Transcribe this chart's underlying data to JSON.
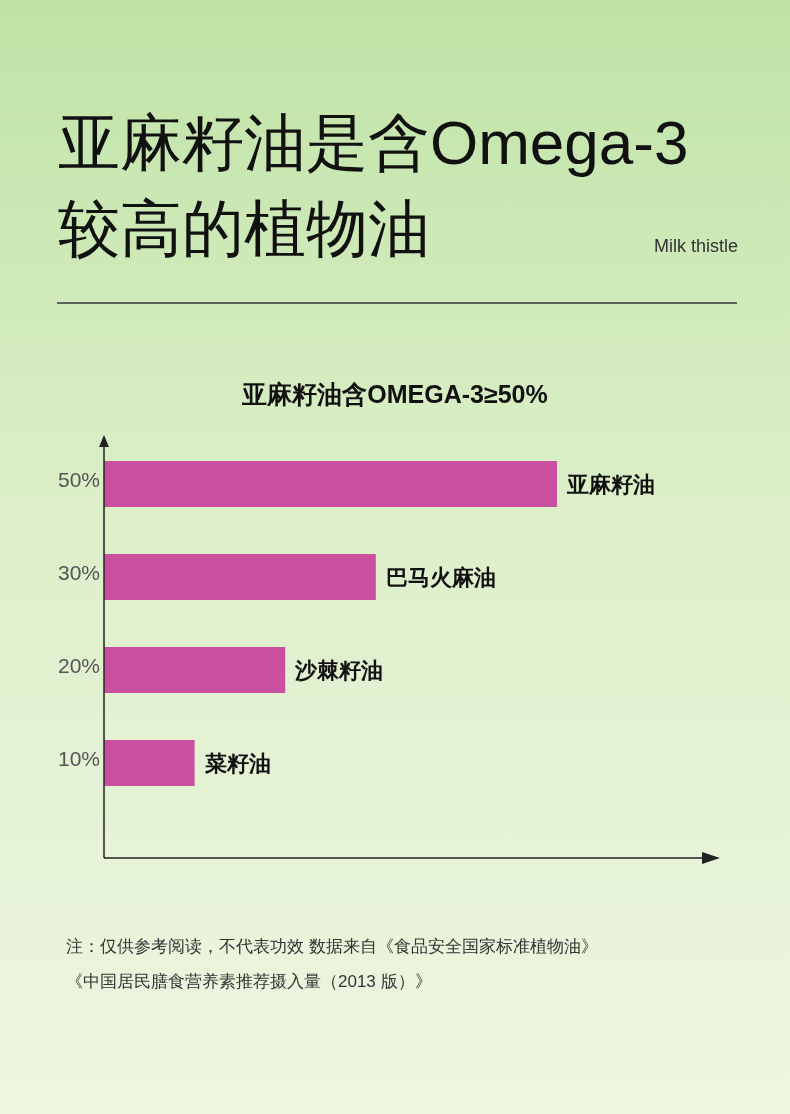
{
  "chart_data": {
    "type": "bar",
    "orientation": "horizontal",
    "title": "亚麻籽油是含Omega-3较高的植物油",
    "subtitle": "亚麻籽油含OMEGA-3≥50%",
    "categories": [
      "亚麻籽油",
      "巴马火麻油",
      "沙棘籽油",
      "菜籽油"
    ],
    "values": [
      50,
      30,
      20,
      10
    ],
    "value_labels": [
      "50%",
      "30%",
      "20%",
      "10%"
    ],
    "color": "#c94f9f",
    "annotations": [
      "Milk thistle",
      "注：仅供参考阅读，不代表功效 数据来自《食品安全国家标准植物油》",
      "《中国居民膳食营养素推荐摄入量（2013 版）》"
    ]
  }
}
